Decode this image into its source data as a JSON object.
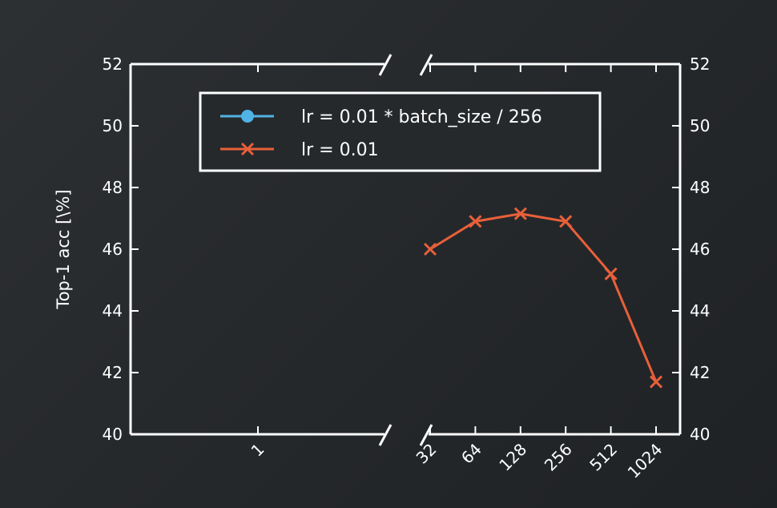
{
  "chart_data": {
    "type": "line",
    "ylabel": "Top-1 acc [\\%]",
    "ylim": [
      40,
      52
    ],
    "y_ticks": [
      "40",
      "42",
      "44",
      "46",
      "48",
      "50",
      "52"
    ],
    "x_scale": "log2",
    "x_axis_broken": true,
    "x_tick_labels_left": [
      "1"
    ],
    "x_tick_labels_right": [
      "32",
      "64",
      "128",
      "256",
      "512",
      "1024"
    ],
    "legend_position": "top",
    "grid": false,
    "series": [
      {
        "name": "lr = 0.01 * batch_size / 256",
        "color": "#4fb3e6",
        "marker": "circle",
        "x": [],
        "y": []
      },
      {
        "name": "lr = 0.01",
        "color": "#e8603a",
        "marker": "x",
        "x": [
          32,
          64,
          128,
          256,
          512,
          1024
        ],
        "y": [
          46.0,
          46.9,
          47.15,
          46.9,
          45.2,
          41.7
        ]
      }
    ]
  }
}
